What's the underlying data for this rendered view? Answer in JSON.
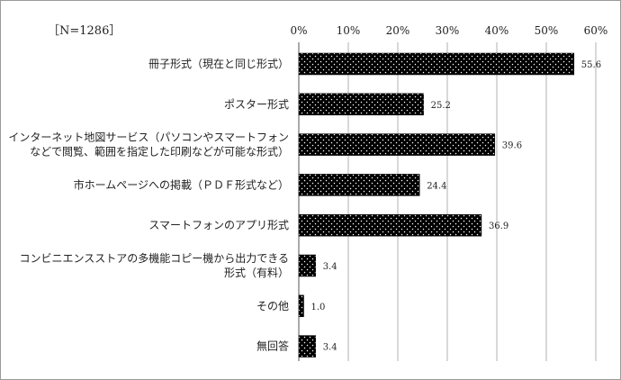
{
  "sample_note": "［N=1286］",
  "chart_data": {
    "type": "bar",
    "orientation": "horizontal",
    "categories": [
      [
        "冊子形式（現在と同じ形式）"
      ],
      [
        "ポスター形式"
      ],
      [
        "インターネット地図サービス（パソコンやスマートフォン",
        "などで閲覧、範囲を指定した印刷などが可能な形式）"
      ],
      [
        "市ホームページへの掲載（ＰＤＦ形式など）"
      ],
      [
        "スマートフォンのアプリ形式"
      ],
      [
        "コンビニエンスストアの多機能コピー機から出力できる",
        "形式（有料）"
      ],
      [
        "その他"
      ],
      [
        "無回答"
      ]
    ],
    "values": [
      55.6,
      25.2,
      39.6,
      24.4,
      36.9,
      3.4,
      1.0,
      3.4
    ],
    "value_labels": [
      "55.6",
      "25.2",
      "39.6",
      "24.4",
      "36.9",
      "3.4",
      "1.0",
      "3.4"
    ],
    "xlim": [
      0,
      60
    ],
    "xticks": [
      0,
      10,
      20,
      30,
      40,
      50,
      60
    ],
    "xtick_labels": [
      "0%",
      "10%",
      "20%",
      "30%",
      "40%",
      "50%",
      "60%"
    ],
    "xgrid": true,
    "bar_fill": "black with white dots",
    "colors": {
      "bar": "#000000",
      "dot": "#ffffff",
      "grid": "#b0b0b0",
      "axis": "#555555"
    },
    "title": "",
    "xlabel": "",
    "ylabel": ""
  }
}
